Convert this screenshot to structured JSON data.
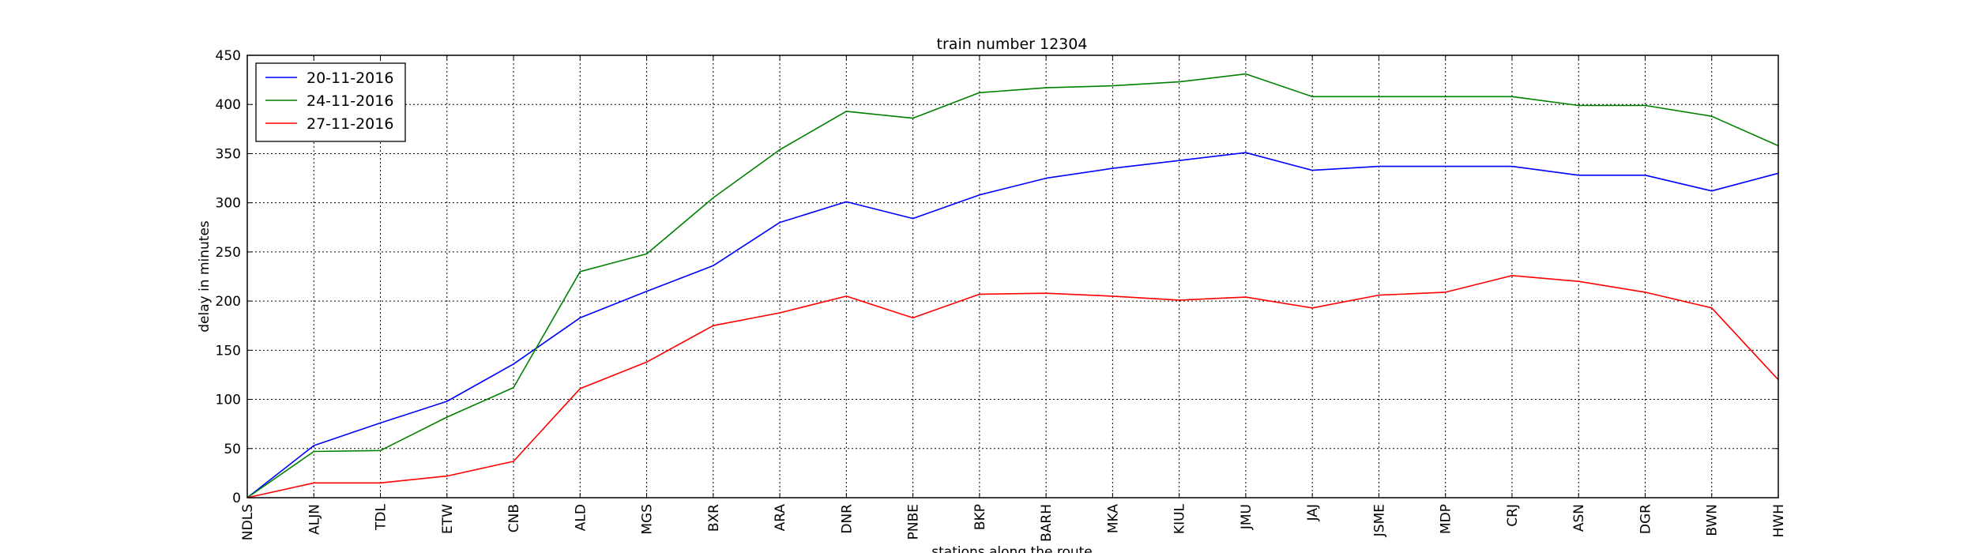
{
  "chart_data": {
    "type": "line",
    "title": "train number 12304",
    "xlabel": "stations along the route",
    "ylabel": "delay in minutes",
    "categories": [
      "NDLS",
      "ALJN",
      "TDL",
      "ETW",
      "CNB",
      "ALD",
      "MGS",
      "BXR",
      "ARA",
      "DNR",
      "PNBE",
      "BKP",
      "BARH",
      "MKA",
      "KIUL",
      "JMU",
      "JAJ",
      "JSME",
      "MDP",
      "CRJ",
      "ASN",
      "DGR",
      "BWN",
      "HWH"
    ],
    "ylim": [
      0,
      450
    ],
    "yticks": [
      "0",
      "50",
      "100",
      "150",
      "200",
      "250",
      "300",
      "350",
      "400",
      "450"
    ],
    "grid": true,
    "legend_position": "top-left",
    "series": [
      {
        "name": "20-11-2016",
        "color": "#0000ff",
        "values": [
          0,
          53,
          76,
          98,
          136,
          183,
          210,
          236,
          280,
          301,
          284,
          308,
          325,
          335,
          343,
          351,
          333,
          337,
          337,
          337,
          328,
          328,
          312,
          330
        ]
      },
      {
        "name": "24-11-2016",
        "color": "#008000",
        "values": [
          0,
          47,
          48,
          82,
          112,
          230,
          248,
          305,
          354,
          393,
          386,
          412,
          417,
          419,
          423,
          431,
          408,
          408,
          408,
          408,
          399,
          399,
          388,
          358
        ]
      },
      {
        "name": "27-11-2016",
        "color": "#ff0000",
        "values": [
          0,
          15,
          15,
          22,
          37,
          111,
          138,
          175,
          188,
          205,
          183,
          207,
          208,
          205,
          201,
          204,
          193,
          206,
          209,
          226,
          220,
          209,
          193,
          120
        ]
      }
    ]
  }
}
